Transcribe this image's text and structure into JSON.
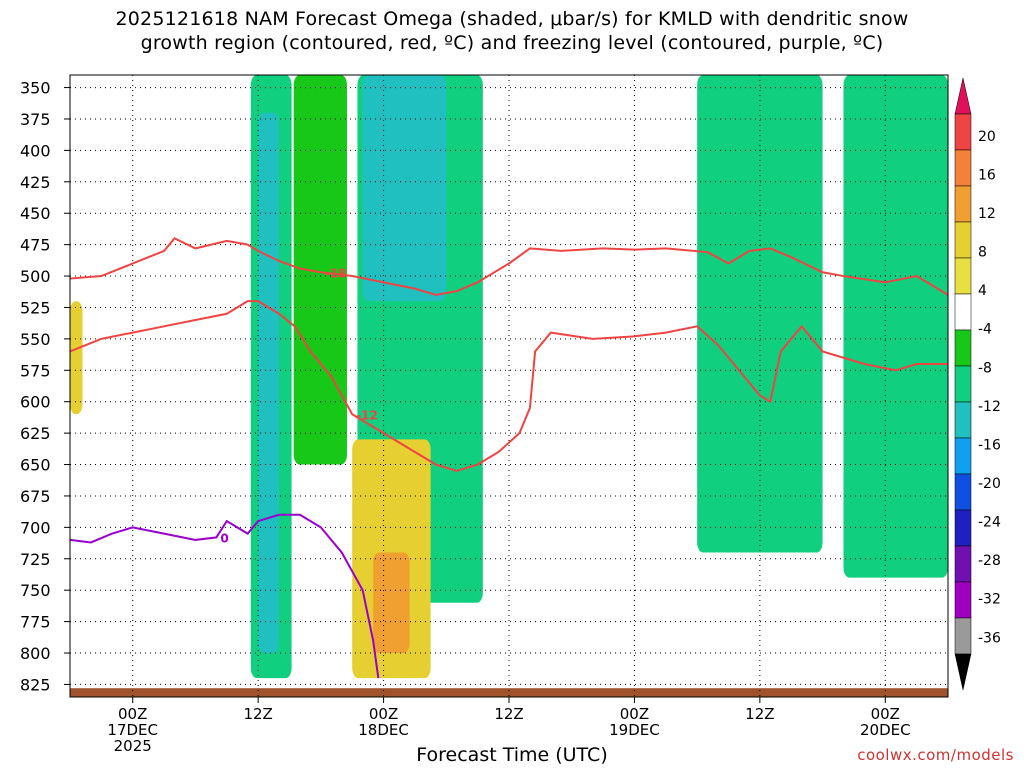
{
  "title": {
    "line1": "2025121618 NAM Forecast Omega (shaded, μbar/s) for KMLD with dendritic snow",
    "line2": "growth region (contoured, red, ºC) and freezing level (contoured, purple, ºC)"
  },
  "xlabel": "Forecast Time (UTC)",
  "credit": "coolwx.com/models",
  "colors": {
    "dgz_contour": "#ee4444",
    "freezing_contour": "#9900cc",
    "terrain": "#a0522d",
    "grid": "#000000"
  },
  "chart_data": {
    "type": "heatmap",
    "y_axis": {
      "label": "",
      "scale": "pressure (inverted)",
      "ticks": [
        "350",
        "375",
        "400",
        "425",
        "450",
        "475",
        "500",
        "525",
        "550",
        "575",
        "600",
        "625",
        "650",
        "675",
        "700",
        "725",
        "750",
        "775",
        "800",
        "825"
      ],
      "range": [
        340,
        835
      ]
    },
    "x_axis": {
      "ticks": [
        {
          "hour": 6,
          "lines": [
            "00Z",
            "17DEC",
            "2025"
          ]
        },
        {
          "hour": 18,
          "lines": [
            "12Z"
          ]
        },
        {
          "hour": 30,
          "lines": [
            "00Z",
            "18DEC"
          ]
        },
        {
          "hour": 42,
          "lines": [
            "12Z"
          ]
        },
        {
          "hour": 54,
          "lines": [
            "00Z",
            "19DEC"
          ]
        },
        {
          "hour": 66,
          "lines": [
            "12Z"
          ]
        },
        {
          "hour": 78,
          "lines": [
            "00Z",
            "20DEC"
          ]
        }
      ],
      "range_hours": [
        0,
        84
      ],
      "grid": true
    },
    "colorbar": {
      "labels": [
        "20",
        "16",
        "12",
        "8",
        "4",
        "-4",
        "-8",
        "-12",
        "-16",
        "-20",
        "-24",
        "-28",
        "-32",
        "-36"
      ],
      "colors": [
        "#e0105a",
        "#ee4444",
        "#f5803a",
        "#f0a030",
        "#e6cf30",
        "#e8e040",
        "#ffffff",
        "#18c818",
        "#10d080",
        "#20c0c0",
        "#10a0f0",
        "#1050e0",
        "#2020c0",
        "#7010b0",
        "#a000c0",
        "#9a9a9a",
        "#000000"
      ]
    },
    "omega_regions": [
      {
        "name": "ascent-band-1",
        "hours": [
          17.3,
          21.2
        ],
        "pressure": [
          340,
          820
        ],
        "omega": -8
      },
      {
        "name": "ascent-band-1-core",
        "hours": [
          18.0,
          20.0
        ],
        "pressure": [
          370,
          800
        ],
        "omega": -14
      },
      {
        "name": "ascent-band-2",
        "hours": [
          21.4,
          26.5
        ],
        "pressure": [
          340,
          650
        ],
        "omega": -6
      },
      {
        "name": "ascent-band-3",
        "hours": [
          27.5,
          39.5
        ],
        "pressure": [
          340,
          760
        ],
        "omega": -10
      },
      {
        "name": "ascent-band-3-core",
        "hours": [
          28.0,
          36.0
        ],
        "pressure": [
          340,
          520
        ],
        "omega": -12
      },
      {
        "name": "ascent-band-4",
        "hours": [
          60.0,
          72.0
        ],
        "pressure": [
          340,
          720
        ],
        "omega": -8
      },
      {
        "name": "ascent-band-5",
        "hours": [
          74.0,
          84.0
        ],
        "pressure": [
          340,
          740
        ],
        "omega": -8
      },
      {
        "name": "descent-1",
        "hours": [
          0.0,
          1.2
        ],
        "pressure": [
          520,
          610
        ],
        "omega": 5
      },
      {
        "name": "descent-2",
        "hours": [
          27.0,
          34.5
        ],
        "pressure": [
          630,
          820
        ],
        "omega": 5
      },
      {
        "name": "descent-2-core",
        "hours": [
          29.0,
          32.5
        ],
        "pressure": [
          720,
          800
        ],
        "omega": 10
      }
    ],
    "dgz_contours": [
      {
        "label": "-18",
        "hours": [
          0,
          3,
          6,
          9,
          10,
          12,
          15,
          17,
          18,
          20,
          22,
          24,
          27,
          30,
          33,
          35,
          37,
          39,
          42,
          44,
          47,
          51,
          54,
          57,
          61,
          63,
          65,
          67,
          69,
          72,
          74,
          78,
          81,
          84
        ],
        "pressure": [
          502,
          500,
          490,
          480,
          470,
          478,
          472,
          475,
          480,
          488,
          494,
          497,
          500,
          505,
          510,
          515,
          512,
          505,
          490,
          478,
          480,
          478,
          479,
          478,
          481,
          490,
          480,
          478,
          485,
          497,
          500,
          505,
          500,
          515
        ]
      },
      {
        "label": "-12",
        "hours": [
          0,
          3,
          6,
          9,
          12,
          15,
          17,
          18,
          20,
          21.5,
          23,
          25,
          27,
          30,
          33,
          35,
          37,
          39,
          41,
          43,
          44,
          44.5,
          46,
          50,
          54,
          57,
          60,
          62,
          64,
          66,
          67,
          68,
          70,
          72,
          76,
          79,
          81,
          84
        ],
        "pressure": [
          560,
          550,
          545,
          540,
          535,
          530,
          520,
          520,
          530,
          540,
          560,
          580,
          610,
          625,
          640,
          650,
          655,
          650,
          640,
          625,
          605,
          560,
          545,
          550,
          548,
          545,
          540,
          555,
          575,
          595,
          600,
          560,
          540,
          560,
          570,
          575,
          570,
          570
        ]
      }
    ],
    "freezing_level": {
      "label": "0",
      "hours": [
        0,
        2,
        4,
        6,
        9,
        12,
        14,
        15,
        16,
        17,
        18,
        20,
        22,
        24,
        26,
        28,
        29,
        29.5
      ],
      "pressure": [
        710,
        712,
        705,
        700,
        705,
        710,
        708,
        695,
        700,
        705,
        695,
        690,
        690,
        700,
        720,
        750,
        790,
        820
      ]
    }
  }
}
